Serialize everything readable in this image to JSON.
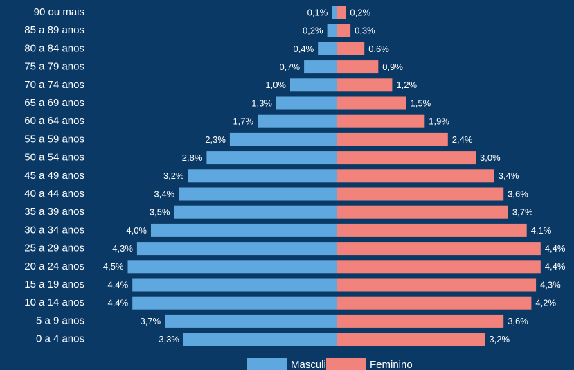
{
  "chart_data": {
    "type": "pyramid",
    "categories": [
      "90 ou mais",
      "85 a 89 anos",
      "80 a 84 anos",
      "75 a 79 anos",
      "70 a 74 anos",
      "65 a 69 anos",
      "60 a 64 anos",
      "55 a 59 anos",
      "50 a 54 anos",
      "45 a 49 anos",
      "40 a 44 anos",
      "35 a 39 anos",
      "30 a 34 anos",
      "25 a 29 anos",
      "20 a 24 anos",
      "15 a 19 anos",
      "10 a 14 anos",
      "5 a 9 anos",
      "0 a 4 anos"
    ],
    "series": [
      {
        "name": "Masculino",
        "color": "#5fa8df",
        "values": [
          0.1,
          0.2,
          0.4,
          0.7,
          1.0,
          1.3,
          1.7,
          2.3,
          2.8,
          3.2,
          3.4,
          3.5,
          4.0,
          4.3,
          4.5,
          4.4,
          4.4,
          3.7,
          3.3
        ],
        "value_labels": [
          "0,1%",
          "0,2%",
          "0,4%",
          "0,7%",
          "1,0%",
          "1,3%",
          "1,7%",
          "2,3%",
          "2,8%",
          "3,2%",
          "3,4%",
          "3,5%",
          "4,0%",
          "4,3%",
          "4,5%",
          "4,4%",
          "4,4%",
          "3,7%",
          "3,3%"
        ]
      },
      {
        "name": "Feminino",
        "color": "#f2837c",
        "values": [
          0.2,
          0.3,
          0.6,
          0.9,
          1.2,
          1.5,
          1.9,
          2.4,
          3.0,
          3.4,
          3.6,
          3.7,
          4.1,
          4.4,
          4.4,
          4.3,
          4.2,
          3.6,
          3.2
        ],
        "value_labels": [
          "0,2%",
          "0,3%",
          "0,6%",
          "0,9%",
          "1,2%",
          "1,5%",
          "1,9%",
          "2,4%",
          "3,0%",
          "3,4%",
          "3,6%",
          "3,7%",
          "4,1%",
          "4,4%",
          "4,4%",
          "4,3%",
          "4,2%",
          "3,6%",
          "3,2%"
        ]
      }
    ]
  }
}
